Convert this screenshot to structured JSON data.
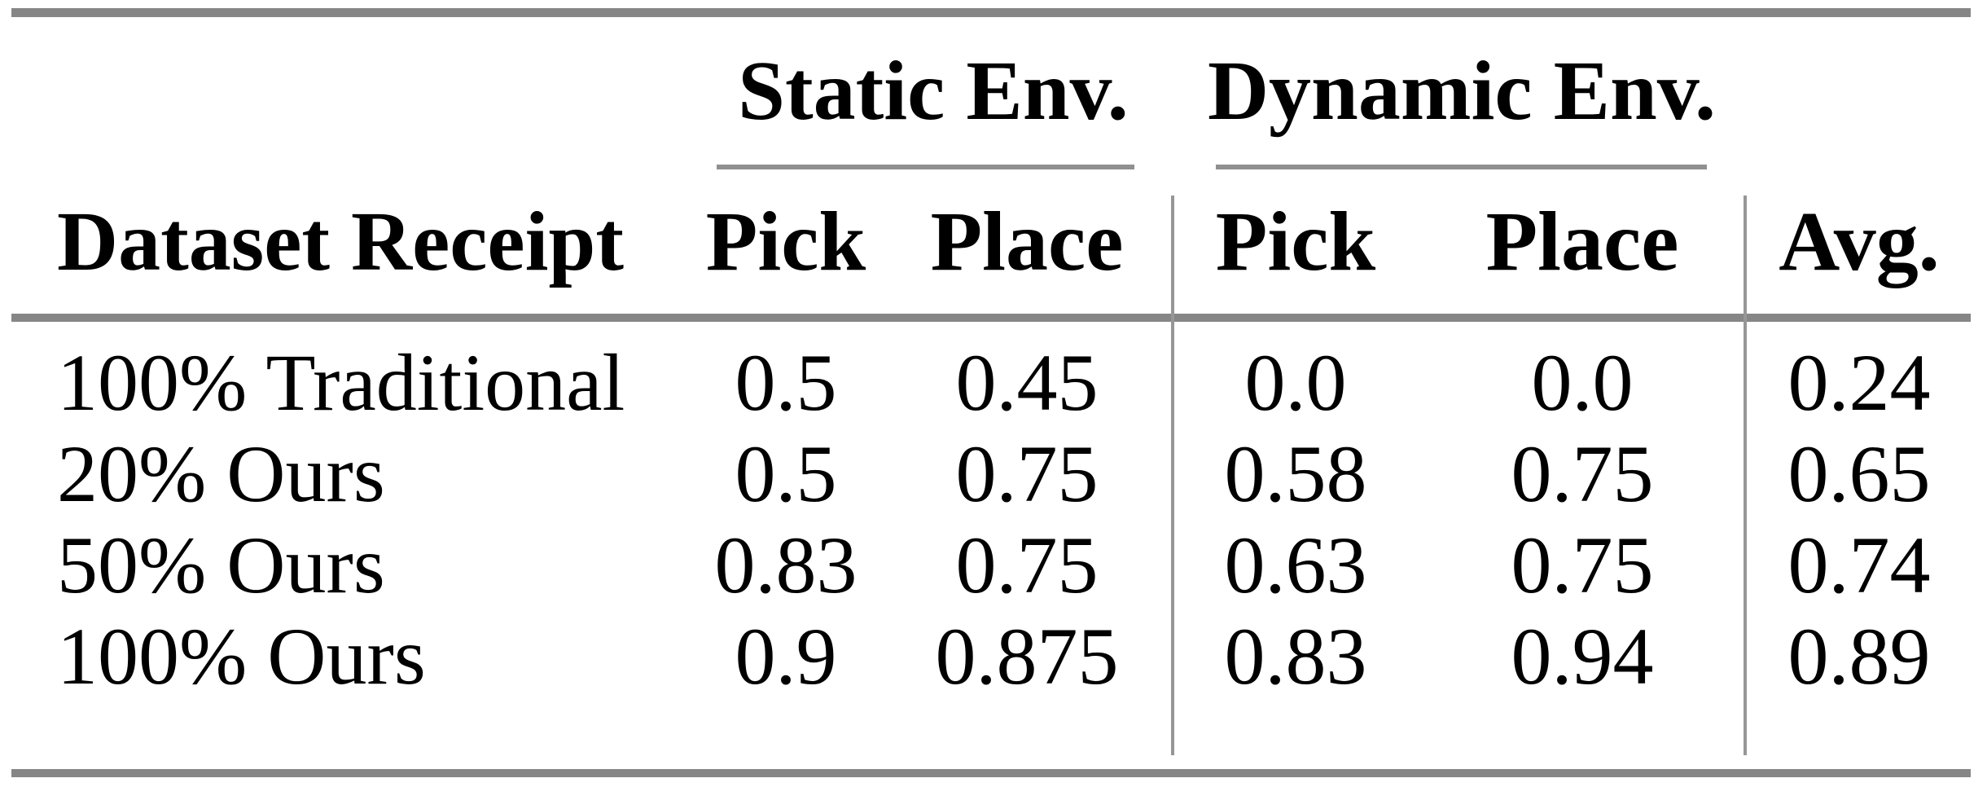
{
  "table": {
    "header": {
      "row_label": "Dataset Receipt",
      "group_static": "Static Env.",
      "group_dynamic": "Dynamic Env.",
      "static_pick": "Pick",
      "static_place": "Place",
      "dynamic_pick": "Pick",
      "dynamic_place": "Place",
      "avg": "Avg."
    },
    "rows": [
      {
        "label": "100% Traditional",
        "static_pick": "0.5",
        "static_place": "0.45",
        "dynamic_pick": "0.0",
        "dynamic_place": "0.0",
        "avg": "0.24"
      },
      {
        "label": "20% Ours",
        "static_pick": "0.5",
        "static_place": "0.75",
        "dynamic_pick": "0.58",
        "dynamic_place": "0.75",
        "avg": "0.65"
      },
      {
        "label": "50% Ours",
        "static_pick": "0.83",
        "static_place": "0.75",
        "dynamic_pick": "0.63",
        "dynamic_place": "0.75",
        "avg": "0.74"
      },
      {
        "label": "100% Ours",
        "static_pick": "0.9",
        "static_place": "0.875",
        "dynamic_pick": "0.83",
        "dynamic_place": "0.94",
        "avg": "0.89"
      }
    ],
    "colors": {
      "rule_gray": "#868686",
      "thin_rule_gray": "#909090",
      "separator_gray": "#969696",
      "text": "#000000",
      "background": "#ffffff"
    }
  },
  "chart_data": {
    "type": "table",
    "title": "",
    "column_groups": [
      {
        "label": "Static Env.",
        "columns": [
          "Pick",
          "Place"
        ]
      },
      {
        "label": "Dynamic Env.",
        "columns": [
          "Pick",
          "Place"
        ]
      }
    ],
    "columns": [
      "Dataset Receipt",
      "Static Env. Pick",
      "Static Env. Place",
      "Dynamic Env. Pick",
      "Dynamic Env. Place",
      "Avg."
    ],
    "rows": [
      [
        "100% Traditional",
        0.5,
        0.45,
        0.0,
        0.0,
        0.24
      ],
      [
        "20% Ours",
        0.5,
        0.75,
        0.58,
        0.75,
        0.65
      ],
      [
        "50% Ours",
        0.83,
        0.75,
        0.63,
        0.75,
        0.74
      ],
      [
        "100% Ours",
        0.9,
        0.875,
        0.83,
        0.94,
        0.89
      ]
    ]
  }
}
